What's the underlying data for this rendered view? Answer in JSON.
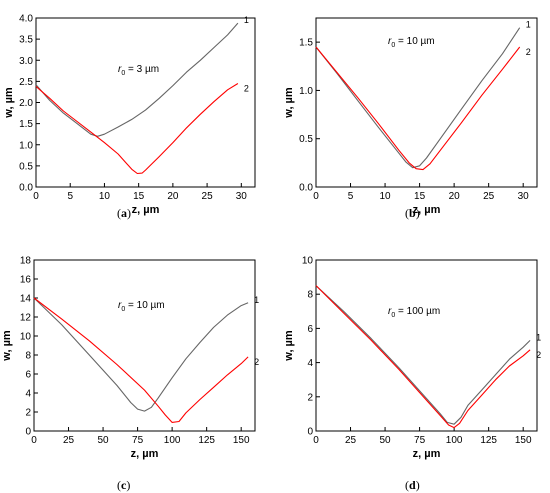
{
  "captions": [
    "(a)",
    "(b)",
    "(c)",
    "(d)"
  ],
  "chart_data": [
    {
      "type": "line",
      "panel": "a",
      "annotation": "r0 = 3 µm",
      "xlabel": "z, µm",
      "ylabel": "w, µm",
      "xlim": [
        0,
        32
      ],
      "ylim": [
        0,
        4.0
      ],
      "xticks": [
        0,
        5,
        10,
        15,
        20,
        25,
        30
      ],
      "yticks": [
        0.0,
        0.5,
        1.0,
        1.5,
        2.0,
        2.5,
        3.0,
        3.5,
        4.0
      ],
      "xtick_labels": [
        "0",
        "5",
        "10",
        "15",
        "20",
        "25",
        "30"
      ],
      "ytick_labels": [
        "0.0",
        "0.5",
        "1.0",
        "1.5",
        "2.0",
        "2.5",
        "3.0",
        "3.5",
        "4.0"
      ],
      "series": [
        {
          "name": "1",
          "color": "#666666",
          "x": [
            0,
            2,
            4,
            6,
            8,
            9,
            10,
            12,
            14,
            16,
            18,
            20,
            22,
            24,
            26,
            28,
            29.5
          ],
          "y": [
            2.42,
            2.05,
            1.75,
            1.5,
            1.25,
            1.2,
            1.25,
            1.42,
            1.6,
            1.82,
            2.1,
            2.4,
            2.72,
            3.0,
            3.3,
            3.6,
            3.88
          ]
        },
        {
          "name": "2",
          "color": "#ff0000",
          "x": [
            0,
            2,
            4,
            6,
            8,
            10,
            12,
            13,
            14,
            14.8,
            15.5,
            16,
            18,
            20,
            22,
            24,
            26,
            28,
            29.5
          ],
          "y": [
            2.38,
            2.1,
            1.8,
            1.55,
            1.3,
            1.05,
            0.78,
            0.6,
            0.42,
            0.32,
            0.33,
            0.4,
            0.72,
            1.05,
            1.4,
            1.72,
            2.02,
            2.3,
            2.45
          ]
        }
      ]
    },
    {
      "type": "line",
      "panel": "b",
      "annotation": "r0 = 10 µm",
      "xlabel": "z, µm",
      "ylabel": "w, µm",
      "xlim": [
        0,
        32
      ],
      "ylim": [
        0,
        1.75
      ],
      "xticks": [
        0,
        5,
        10,
        15,
        20,
        25,
        30
      ],
      "yticks": [
        0.0,
        0.5,
        1.0,
        1.5
      ],
      "xtick_labels": [
        "0",
        "5",
        "10",
        "15",
        "20",
        "25",
        "30"
      ],
      "ytick_labels": [
        "0.0",
        "0.5",
        "1.0",
        "1.5"
      ],
      "series": [
        {
          "name": "1",
          "color": "#666666",
          "x": [
            0,
            3,
            6,
            9,
            12,
            13,
            14,
            15,
            16,
            18,
            21,
            24,
            27,
            29.5
          ],
          "y": [
            1.45,
            1.18,
            0.9,
            0.62,
            0.35,
            0.26,
            0.2,
            0.22,
            0.3,
            0.5,
            0.8,
            1.1,
            1.38,
            1.65
          ]
        },
        {
          "name": "2",
          "color": "#ff0000",
          "x": [
            0,
            3,
            6,
            9,
            12,
            13.5,
            14.5,
            15.5,
            16.5,
            18,
            21,
            24,
            27,
            29.5
          ],
          "y": [
            1.45,
            1.19,
            0.93,
            0.66,
            0.38,
            0.25,
            0.19,
            0.18,
            0.24,
            0.38,
            0.66,
            0.95,
            1.22,
            1.45
          ]
        }
      ]
    },
    {
      "type": "line",
      "panel": "c",
      "annotation": "r0 = 10 µm",
      "xlabel": "z, µm",
      "ylabel": "w, µm",
      "xlim": [
        0,
        160
      ],
      "ylim": [
        0,
        18
      ],
      "xticks": [
        0,
        25,
        50,
        75,
        100,
        125,
        150
      ],
      "yticks": [
        0,
        2,
        4,
        6,
        8,
        10,
        12,
        14,
        16,
        18
      ],
      "xtick_labels": [
        "0",
        "25",
        "50",
        "75",
        "100",
        "125",
        "150"
      ],
      "ytick_labels": [
        "0",
        "2",
        "4",
        "6",
        "8",
        "10",
        "12",
        "14",
        "16",
        "18"
      ],
      "series": [
        {
          "name": "1",
          "color": "#666666",
          "x": [
            0,
            20,
            40,
            60,
            70,
            75,
            80,
            85,
            90,
            100,
            110,
            120,
            130,
            140,
            150,
            155
          ],
          "y": [
            14,
            11.2,
            8,
            4.8,
            3.0,
            2.3,
            2.1,
            2.5,
            3.5,
            5.6,
            7.6,
            9.3,
            10.9,
            12.2,
            13.2,
            13.5
          ]
        },
        {
          "name": "2",
          "color": "#ff0000",
          "x": [
            0,
            20,
            40,
            60,
            80,
            90,
            95,
            100,
            105,
            110,
            120,
            130,
            140,
            150,
            155
          ],
          "y": [
            14,
            11.8,
            9.5,
            7.0,
            4.3,
            2.6,
            1.7,
            0.9,
            1.0,
            1.9,
            3.3,
            4.6,
            5.9,
            7.1,
            7.8
          ]
        }
      ]
    },
    {
      "type": "line",
      "panel": "d",
      "annotation": "r0 = 100 µm",
      "xlabel": "z, µm",
      "ylabel": "w, µm",
      "xlim": [
        0,
        160
      ],
      "ylim": [
        0,
        10
      ],
      "xticks": [
        0,
        25,
        50,
        75,
        100,
        125,
        150
      ],
      "yticks": [
        0,
        2,
        4,
        6,
        8,
        10
      ],
      "xtick_labels": [
        "0",
        "25",
        "50",
        "75",
        "100",
        "125",
        "150"
      ],
      "ytick_labels": [
        "0",
        "2",
        "4",
        "6",
        "8",
        "10"
      ],
      "series": [
        {
          "name": "1",
          "color": "#666666",
          "x": [
            0,
            20,
            40,
            60,
            80,
            90,
            95,
            100,
            105,
            110,
            120,
            130,
            140,
            150,
            155
          ],
          "y": [
            8.5,
            7.0,
            5.4,
            3.7,
            1.9,
            1.0,
            0.5,
            0.4,
            0.8,
            1.5,
            2.4,
            3.3,
            4.2,
            4.9,
            5.3
          ]
        },
        {
          "name": "2",
          "color": "#ff0000",
          "x": [
            0,
            20,
            40,
            60,
            80,
            90,
            96,
            100,
            104,
            110,
            120,
            130,
            140,
            150,
            155
          ],
          "y": [
            8.5,
            6.9,
            5.3,
            3.6,
            1.8,
            0.9,
            0.35,
            0.2,
            0.45,
            1.2,
            2.1,
            3.0,
            3.8,
            4.4,
            4.75
          ]
        }
      ]
    }
  ]
}
